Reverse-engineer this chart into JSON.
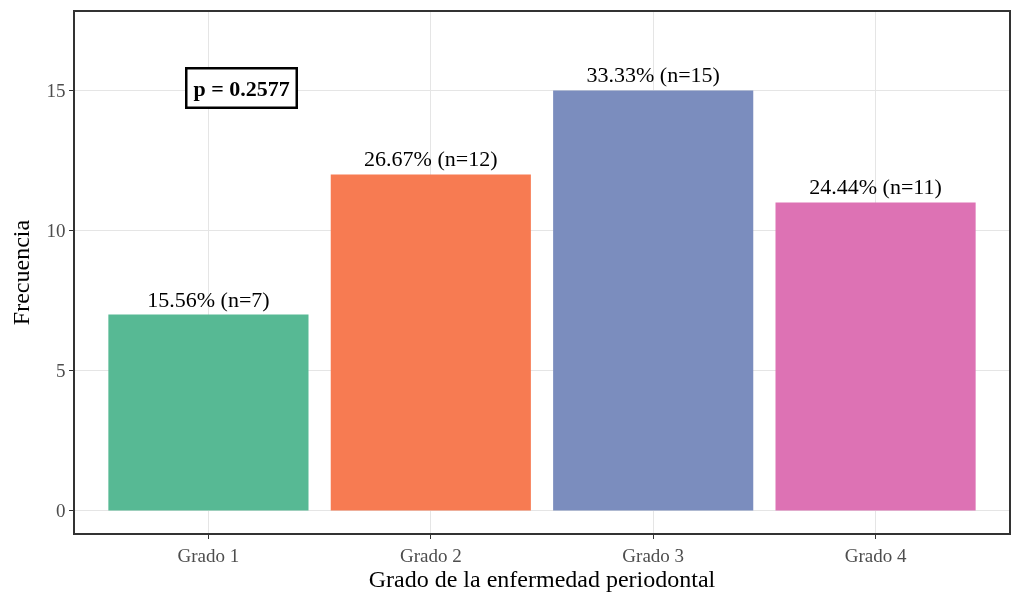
{
  "chart_data": {
    "type": "bar",
    "xlabel": "Grado de la enfermedad periodontal",
    "ylabel": "Frecuencia",
    "categories": [
      "Grado 1",
      "Grado 2",
      "Grado 3",
      "Grado 4"
    ],
    "values": [
      7,
      12,
      15,
      11
    ],
    "colors": [
      "#57b994",
      "#f77b52",
      "#7b8dbe",
      "#dd72b4"
    ],
    "value_labels": [
      "15.56% (n=7)",
      "26.67% (n=12)",
      "33.33% (n=15)",
      "24.44% (n=11)"
    ],
    "ylim": [
      -0.8,
      17.8
    ],
    "yticks": [
      0,
      5,
      10,
      15
    ],
    "grid": true,
    "legend": false,
    "annotations": [
      "p = 0.2577"
    ]
  }
}
